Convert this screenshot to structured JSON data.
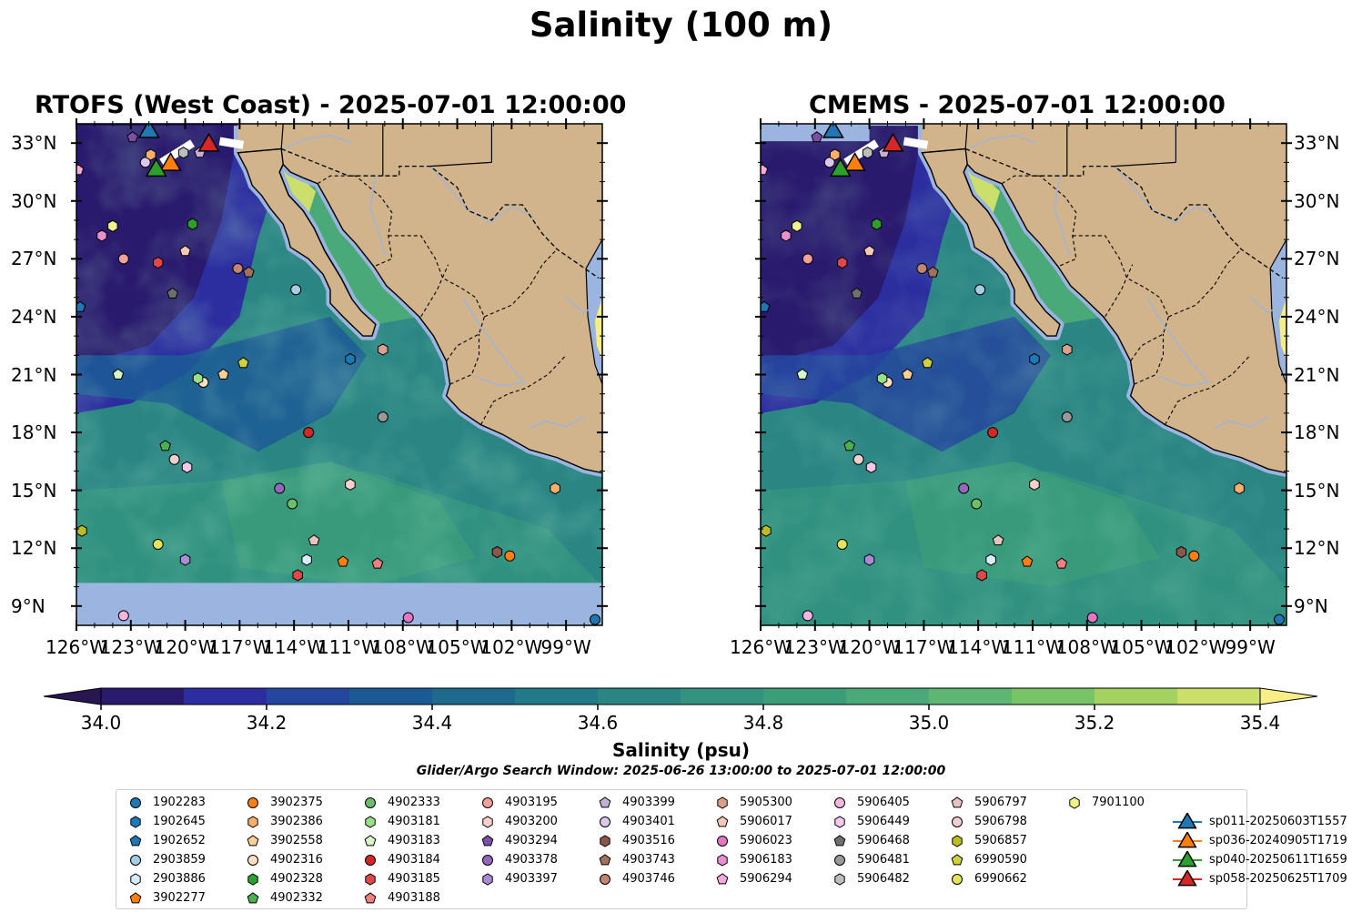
{
  "figure": {
    "title": "Salinity (100 m)"
  },
  "panels": [
    {
      "title": "RTOFS (West Coast) - 2025-07-01 12:00:00"
    },
    {
      "title": "CMEMS - 2025-07-01 12:00:00"
    }
  ],
  "axes": {
    "lat_labels": [
      "33°N",
      "30°N",
      "27°N",
      "24°N",
      "21°N",
      "18°N",
      "15°N",
      "12°N",
      "9°N"
    ],
    "lon_labels": [
      "126°W",
      "123°W",
      "120°W",
      "117°W",
      "114°W",
      "111°W",
      "108°W",
      "105°W",
      "102°W",
      "99°W"
    ],
    "lat_range": [
      8,
      34
    ],
    "lon_range": [
      -126,
      -97
    ]
  },
  "colorbar": {
    "label": "Salinity (psu)",
    "note": "Glider/Argo Search Window: 2025-06-26 13:00:00 to 2025-07-01 12:00:00",
    "range": [
      34.0,
      35.4
    ],
    "ticks": [
      "34.0",
      "34.2",
      "34.4",
      "34.6",
      "34.8",
      "35.0",
      "35.2",
      "35.4"
    ],
    "colors": [
      "#2a1a6e",
      "#2c2ea0",
      "#24469e",
      "#1c5a96",
      "#1d6a8c",
      "#227a88",
      "#2a8583",
      "#33937f",
      "#3c9e79",
      "#4aa978",
      "#5db674",
      "#79c467",
      "#a4d260",
      "#cddf6b"
    ],
    "over_color": "#f9ee86",
    "under_color": "#27164f"
  },
  "map_colors": {
    "land": "#d2b48c",
    "nodata_ocean": "#9bb5e0",
    "river": "#a0b4d6",
    "coast": "#000000"
  },
  "legend": {
    "items": [
      {
        "label": "1902283",
        "marker": "circle",
        "color": "#1f77b4"
      },
      {
        "label": "1902645",
        "marker": "hexagon",
        "color": "#1f77b4"
      },
      {
        "label": "1902652",
        "marker": "pentagon",
        "color": "#1f77b4"
      },
      {
        "label": "2903859",
        "marker": "circle",
        "color": "#a6cee3"
      },
      {
        "label": "2903886",
        "marker": "hexagon",
        "color": "#d6ecf8"
      },
      {
        "label": "3902277",
        "marker": "pentagon",
        "color": "#ff7f0e"
      },
      {
        "label": "3902375",
        "marker": "circle",
        "color": "#ff7f0e"
      },
      {
        "label": "3902386",
        "marker": "hexagon",
        "color": "#fdae6b"
      },
      {
        "label": "3902558",
        "marker": "pentagon",
        "color": "#fdcf96"
      },
      {
        "label": "4902316",
        "marker": "circle",
        "color": "#fde0c5"
      },
      {
        "label": "4902328",
        "marker": "hexagon",
        "color": "#2ca02c"
      },
      {
        "label": "4902332",
        "marker": "pentagon",
        "color": "#4caf50"
      },
      {
        "label": "4902333",
        "marker": "circle",
        "color": "#6abf69"
      },
      {
        "label": "4903181",
        "marker": "hexagon",
        "color": "#98df8a"
      },
      {
        "label": "4903183",
        "marker": "pentagon",
        "color": "#d9f7c6"
      },
      {
        "label": "4903184",
        "marker": "circle",
        "color": "#d62728"
      },
      {
        "label": "4903185",
        "marker": "hexagon",
        "color": "#e0474a"
      },
      {
        "label": "4903188",
        "marker": "pentagon",
        "color": "#f08080"
      },
      {
        "label": "4903195",
        "marker": "circle",
        "color": "#f4a09a"
      },
      {
        "label": "4903200",
        "marker": "hexagon",
        "color": "#fbd0cc"
      },
      {
        "label": "4903294",
        "marker": "pentagon",
        "color": "#7b4fa8"
      },
      {
        "label": "4903378",
        "marker": "circle",
        "color": "#9467bd"
      },
      {
        "label": "4903397",
        "marker": "hexagon",
        "color": "#a98bd6"
      },
      {
        "label": "4903399",
        "marker": "pentagon",
        "color": "#c5b0d5"
      },
      {
        "label": "4903401",
        "marker": "circle",
        "color": "#dcc8ec"
      },
      {
        "label": "4903516",
        "marker": "hexagon",
        "color": "#8c564b"
      },
      {
        "label": "4903743",
        "marker": "pentagon",
        "color": "#a0715f"
      },
      {
        "label": "4903746",
        "marker": "circle",
        "color": "#c08673"
      },
      {
        "label": "5905300",
        "marker": "hexagon",
        "color": "#d9a08e"
      },
      {
        "label": "5906017",
        "marker": "pentagon",
        "color": "#f5c9b8"
      },
      {
        "label": "5906023",
        "marker": "circle",
        "color": "#e377c2"
      },
      {
        "label": "5906183",
        "marker": "hexagon",
        "color": "#e98fd0"
      },
      {
        "label": "5906294",
        "marker": "pentagon",
        "color": "#f7a8df"
      },
      {
        "label": "5906405",
        "marker": "circle",
        "color": "#f7b6e0"
      },
      {
        "label": "5906449",
        "marker": "hexagon",
        "color": "#f9c8ea"
      },
      {
        "label": "5906468",
        "marker": "pentagon",
        "color": "#6f6f6f"
      },
      {
        "label": "5906481",
        "marker": "circle",
        "color": "#999999"
      },
      {
        "label": "5906482",
        "marker": "hexagon",
        "color": "#bdbdbd"
      },
      {
        "label": "5906797",
        "marker": "pentagon",
        "color": "#e8c2c2"
      },
      {
        "label": "5906798",
        "marker": "circle",
        "color": "#f2cfcf"
      },
      {
        "label": "5906857",
        "marker": "hexagon",
        "color": "#bcbd22"
      },
      {
        "label": "6990590",
        "marker": "pentagon",
        "color": "#cfd13a"
      },
      {
        "label": "6990662",
        "marker": "circle",
        "color": "#e3e45a"
      },
      {
        "label": "7901100",
        "marker": "hexagon",
        "color": "#f2f28a"
      },
      {
        "label": "sp011-20250603T1557",
        "marker": "triangle",
        "color": "#1f77b4"
      },
      {
        "label": "sp036-20240905T1719",
        "marker": "triangle",
        "color": "#ff7f0e"
      },
      {
        "label": "sp040-20250611T1659",
        "marker": "triangle",
        "color": "#2ca02c"
      },
      {
        "label": "sp058-20250625T1709",
        "marker": "triangle",
        "color": "#d62728"
      }
    ]
  },
  "observations": [
    {
      "id": "1902283",
      "lon": -97.4,
      "lat": 8.3
    },
    {
      "id": "1902645",
      "lon": -110.9,
      "lat": 21.8
    },
    {
      "id": "1902652",
      "lon": -125.8,
      "lat": 24.5
    },
    {
      "id": "2903859",
      "lon": -113.9,
      "lat": 25.4
    },
    {
      "id": "2903886",
      "lon": -113.3,
      "lat": 11.4
    },
    {
      "id": "3902277",
      "lon": -111.3,
      "lat": 11.3
    },
    {
      "id": "3902375",
      "lon": -102.1,
      "lat": 11.6
    },
    {
      "id": "3902386",
      "lon": -99.6,
      "lat": 15.1
    },
    {
      "id": "3902558",
      "lon": -117.9,
      "lat": 21.0
    },
    {
      "id": "4902316",
      "lon": -119.0,
      "lat": 20.6
    },
    {
      "id": "4902328",
      "lon": -119.6,
      "lat": 28.8
    },
    {
      "id": "4902332",
      "lon": -121.1,
      "lat": 17.3
    },
    {
      "id": "4902333",
      "lon": -114.1,
      "lat": 14.3
    },
    {
      "id": "4903181",
      "lon": -119.3,
      "lat": 20.8
    },
    {
      "id": "4903183",
      "lon": -123.7,
      "lat": 21.0
    },
    {
      "id": "4903184",
      "lon": -113.2,
      "lat": 18.0
    },
    {
      "id": "4903185",
      "lon": -121.5,
      "lat": 26.8
    },
    {
      "id": "4903188",
      "lon": -109.4,
      "lat": 11.2
    },
    {
      "id": "4903195",
      "lon": -123.4,
      "lat": 27.0
    },
    {
      "id": "4903200",
      "lon": -110.9,
      "lat": 15.3
    },
    {
      "id": "4903294",
      "lon": -122.9,
      "lat": 33.3
    },
    {
      "id": "4903378",
      "lon": -114.8,
      "lat": 15.1
    },
    {
      "id": "4903397",
      "lon": -120.0,
      "lat": 11.4
    },
    {
      "id": "4903399",
      "lon": -119.2,
      "lat": 32.5
    },
    {
      "id": "4903401",
      "lon": -122.2,
      "lat": 32.0
    },
    {
      "id": "4903516",
      "lon": -102.8,
      "lat": 11.8
    },
    {
      "id": "4903743",
      "lon": -116.5,
      "lat": 26.3
    },
    {
      "id": "4903746",
      "lon": -117.1,
      "lat": 26.5
    },
    {
      "id": "5905300",
      "lon": -109.1,
      "lat": 22.3
    },
    {
      "id": "5906017",
      "lon": -120.0,
      "lat": 27.4
    },
    {
      "id": "5906023",
      "lon": -107.7,
      "lat": 8.4
    },
    {
      "id": "5906183",
      "lon": -124.6,
      "lat": 28.2
    },
    {
      "id": "5906294",
      "lon": -125.9,
      "lat": 31.6
    },
    {
      "id": "5906405",
      "lon": -123.4,
      "lat": 8.5
    },
    {
      "id": "5906449",
      "lon": -119.9,
      "lat": 16.2
    },
    {
      "id": "5906468",
      "lon": -120.7,
      "lat": 25.2
    },
    {
      "id": "5906481",
      "lon": -109.1,
      "lat": 18.8
    },
    {
      "id": "5906482",
      "lon": -120.1,
      "lat": 32.5
    },
    {
      "id": "5906797",
      "lon": -112.9,
      "lat": 12.4
    },
    {
      "id": "5906798",
      "lon": -120.6,
      "lat": 16.6
    },
    {
      "id": "5906857",
      "lon": -125.7,
      "lat": 12.9
    },
    {
      "id": "6990590",
      "lon": -116.8,
      "lat": 21.6
    },
    {
      "id": "6990662",
      "lon": -121.5,
      "lat": 12.2
    },
    {
      "id": "7901100",
      "lon": -124.0,
      "lat": 28.7
    },
    {
      "id": "3902386b",
      "lon": -121.9,
      "lat": 32.4
    },
    {
      "id": "sp011-20250603T1557",
      "lon": -122.0,
      "lat": 33.7
    },
    {
      "id": "sp036-20240905T1719",
      "lon": -120.8,
      "lat": 32.0
    },
    {
      "id": "sp040-20250611T1659",
      "lon": -121.6,
      "lat": 31.7
    },
    {
      "id": "sp058-20250625T1709",
      "lon": -118.7,
      "lat": 33.0
    },
    {
      "id": "4903185b",
      "lon": -113.8,
      "lat": 10.6
    }
  ]
}
